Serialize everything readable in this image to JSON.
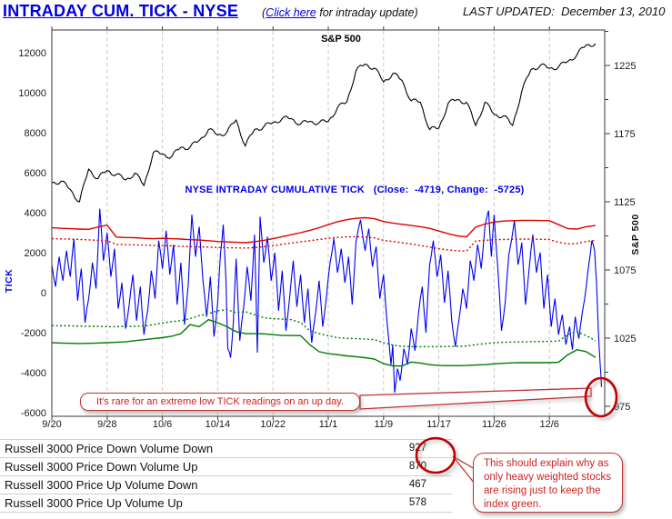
{
  "header": {
    "title": "INTRADAY CUM. TICK - NYSE",
    "subtitle_prefix": "(",
    "link_text": "Click here",
    "subtitle_suffix": " for intraday update)",
    "last_updated": "LAST UPDATED:  December 13, 2010"
  },
  "chart_data": {
    "type": "line",
    "title": "NYSE Intraday Cumulative TICK with S&P 500 overlay",
    "x_axis": {
      "unit": "trading days from 9/20/2010",
      "tick_labels": [
        "9/20",
        "9/28",
        "10/6",
        "10/14",
        "10/22",
        "11/1",
        "11/9",
        "11/17",
        "11/26",
        "12/6"
      ],
      "tick_days": [
        0,
        6,
        12,
        18,
        24,
        30,
        36,
        42,
        48,
        54
      ],
      "range": [
        0,
        60
      ],
      "grid": "vertical-dashed"
    },
    "left_axis": {
      "label": "TICK",
      "ticks": [
        12000,
        10000,
        8000,
        6000,
        4000,
        2000,
        0,
        -2000,
        -4000,
        -6000
      ],
      "range": [
        -6200,
        13150
      ]
    },
    "right_axis": {
      "label": "S&P 500",
      "ticks": [
        1225,
        1175,
        1125,
        1075,
        1025,
        975
      ],
      "minor_step": 25,
      "range": [
        967,
        1251
      ]
    },
    "annotations": {
      "sp_label": "S&P 500",
      "tick_series_label": "NYSE INTRADAY CUMULATIVE TICK   (Close:  -4719, Change:  -5725)",
      "close": -4719,
      "change": -5725
    },
    "series": [
      {
        "name": "S&P 500",
        "axis": "right",
        "style": "solid",
        "color": "#000000",
        "values": [
          1139,
          1140,
          1134,
          1125,
          1149,
          1142,
          1148,
          1145,
          1141,
          1146,
          1137,
          1161,
          1160,
          1158,
          1165,
          1165,
          1170,
          1178,
          1174,
          1176,
          1185,
          1166,
          1178,
          1180,
          1183,
          1186,
          1186,
          1182,
          1184,
          1183,
          1184,
          1194,
          1198,
          1221,
          1226,
          1223,
          1213,
          1219,
          1214,
          1199,
          1198,
          1178,
          1179,
          1197,
          1200,
          1198,
          1181,
          1198,
          1189,
          1188,
          1181,
          1206,
          1222,
          1225,
          1223,
          1224,
          1228,
          1233,
          1240,
          1241
        ]
      },
      {
        "name": "NYSE Intraday Cumulative TICK",
        "axis": "left",
        "style": "solid",
        "color": "#0000ee",
        "points": [
          [
            0,
            1400
          ],
          [
            0.4,
            300
          ],
          [
            0.8,
            1800
          ],
          [
            1.2,
            600
          ],
          [
            1.6,
            2100
          ],
          [
            2,
            800
          ],
          [
            2.4,
            2700
          ],
          [
            2.8,
            -400
          ],
          [
            3.2,
            1200
          ],
          [
            3.6,
            -1500
          ],
          [
            4,
            -300
          ],
          [
            4.4,
            1500
          ],
          [
            4.8,
            200
          ],
          [
            5.2,
            4200
          ],
          [
            5.6,
            1600
          ],
          [
            6,
            3000
          ],
          [
            6.4,
            800
          ],
          [
            6.8,
            2200
          ],
          [
            7.2,
            -800
          ],
          [
            7.6,
            500
          ],
          [
            8,
            -1800
          ],
          [
            8.4,
            -600
          ],
          [
            8.8,
            900
          ],
          [
            9.2,
            -1400
          ],
          [
            9.6,
            300
          ],
          [
            10,
            -2100
          ],
          [
            10.4,
            -900
          ],
          [
            10.8,
            1100
          ],
          [
            11.2,
            -300
          ],
          [
            11.6,
            2600
          ],
          [
            12,
            1200
          ],
          [
            12.4,
            3100
          ],
          [
            12.8,
            900
          ],
          [
            13.2,
            2400
          ],
          [
            13.6,
            -600
          ],
          [
            14,
            1500
          ],
          [
            14.4,
            -1600
          ],
          [
            14.8,
            400
          ],
          [
            15.2,
            3900
          ],
          [
            15.6,
            1800
          ],
          [
            16,
            3300
          ],
          [
            16.4,
            600
          ],
          [
            16.8,
            -1200
          ],
          [
            17.2,
            800
          ],
          [
            17.6,
            -2200
          ],
          [
            18,
            -500
          ],
          [
            18.3,
            1900
          ],
          [
            18.6,
            3400
          ],
          [
            18.9,
            600
          ],
          [
            19.1,
            -2800
          ],
          [
            19.4,
            -3250
          ],
          [
            19.7,
            -1500
          ],
          [
            20,
            1700
          ],
          [
            20.4,
            -2400
          ],
          [
            20.8,
            -800
          ],
          [
            21.2,
            1300
          ],
          [
            21.6,
            -400
          ],
          [
            22,
            2900
          ],
          [
            22.3,
            -3000
          ],
          [
            22.6,
            3800
          ],
          [
            23,
            1500
          ],
          [
            23.4,
            2800
          ],
          [
            23.8,
            600
          ],
          [
            24.2,
            2000
          ],
          [
            24.6,
            -900
          ],
          [
            25,
            1100
          ],
          [
            25.4,
            -1900
          ],
          [
            25.8,
            -300
          ],
          [
            26.2,
            1600
          ],
          [
            26.6,
            -700
          ],
          [
            27,
            900
          ],
          [
            27.4,
            -1500
          ],
          [
            27.8,
            200
          ],
          [
            28.2,
            -2500
          ],
          [
            28.6,
            -1100
          ],
          [
            29,
            600
          ],
          [
            29.4,
            -1700
          ],
          [
            29.8,
            -200
          ],
          [
            30.2,
            1500
          ],
          [
            30.6,
            2700
          ],
          [
            31,
            1000
          ],
          [
            31.4,
            2200
          ],
          [
            31.8,
            500
          ],
          [
            32.2,
            1800
          ],
          [
            32.6,
            -600
          ],
          [
            33,
            2500
          ],
          [
            33.5,
            3650
          ],
          [
            34,
            2100
          ],
          [
            34.4,
            3200
          ],
          [
            34.8,
            1300
          ],
          [
            35.2,
            2300
          ],
          [
            35.6,
            -300
          ],
          [
            36,
            900
          ],
          [
            36.4,
            -1600
          ],
          [
            36.8,
            -3600
          ],
          [
            37,
            -2600
          ],
          [
            37.2,
            -5000
          ],
          [
            37.5,
            -3800
          ],
          [
            37.8,
            -4400
          ],
          [
            38.2,
            -2800
          ],
          [
            38.6,
            -3600
          ],
          [
            39,
            -1800
          ],
          [
            39.4,
            -2900
          ],
          [
            39.8,
            -1000
          ],
          [
            40.2,
            300
          ],
          [
            40.6,
            -2000
          ],
          [
            41,
            1400
          ],
          [
            41.4,
            2600
          ],
          [
            41.8,
            800
          ],
          [
            42.2,
            1900
          ],
          [
            42.6,
            -500
          ],
          [
            43,
            1100
          ],
          [
            43.4,
            -1400
          ],
          [
            43.8,
            -2700
          ],
          [
            44.2,
            -1300
          ],
          [
            44.6,
            200
          ],
          [
            45,
            -800
          ],
          [
            45.4,
            1600
          ],
          [
            45.8,
            600
          ],
          [
            46.2,
            2400
          ],
          [
            46.6,
            1200
          ],
          [
            47,
            3300
          ],
          [
            47.4,
            4100
          ],
          [
            47.7,
            1800
          ],
          [
            48,
            3900
          ],
          [
            48.4,
            1200
          ],
          [
            48.8,
            -1900
          ],
          [
            49.2,
            -500
          ],
          [
            49.6,
            1900
          ],
          [
            50.2,
            3600
          ],
          [
            50.6,
            1400
          ],
          [
            51,
            2500
          ],
          [
            51.4,
            -600
          ],
          [
            51.8,
            1200
          ],
          [
            52.2,
            2900
          ],
          [
            52.6,
            1000
          ],
          [
            53,
            2000
          ],
          [
            53.4,
            -800
          ],
          [
            53.8,
            900
          ],
          [
            54.2,
            -1700
          ],
          [
            54.6,
            -300
          ],
          [
            55,
            -2100
          ],
          [
            55.4,
            -1100
          ],
          [
            55.8,
            -2600
          ],
          [
            56.2,
            -1700
          ],
          [
            56.5,
            -2850
          ],
          [
            56.8,
            -1200
          ],
          [
            57.2,
            -2300
          ],
          [
            57.6,
            -900
          ],
          [
            58,
            300
          ],
          [
            58.3,
            1500
          ],
          [
            58.6,
            2600
          ],
          [
            58.9,
            2100
          ],
          [
            59.1,
            600
          ],
          [
            59.3,
            -1800
          ],
          [
            59.5,
            -3500
          ],
          [
            59.65,
            -4719
          ]
        ]
      },
      {
        "name": "Upper band",
        "axis": "left",
        "style": "solid",
        "color": "#e00000",
        "values": [
          3250,
          3220,
          3200,
          3180,
          3170,
          3280,
          3380,
          2780,
          2760,
          2750,
          2720,
          2700,
          2720,
          2700,
          2680,
          2650,
          2630,
          2600,
          2560,
          2540,
          2520,
          2500,
          2550,
          2620,
          2700,
          2800,
          2900,
          3000,
          3120,
          3250,
          3400,
          3550,
          3650,
          3720,
          3750,
          3700,
          3560,
          3480,
          3420,
          3360,
          3300,
          3220,
          3080,
          2950,
          2840,
          2790,
          3280,
          3430,
          3530,
          3580,
          3600,
          3620,
          3620,
          3610,
          3600,
          3400,
          3200,
          3180,
          3300,
          3360
        ]
      },
      {
        "name": "Upper band (dotted)",
        "axis": "left",
        "style": "dotted",
        "color": "#e00000",
        "values": [
          2700,
          2690,
          2680,
          2660,
          2640,
          2620,
          2600,
          2420,
          2400,
          2390,
          2380,
          2360,
          2350,
          2340,
          2320,
          2300,
          2290,
          2280,
          2260,
          2250,
          2240,
          2230,
          2260,
          2300,
          2350,
          2420,
          2480,
          2540,
          2600,
          2660,
          2720,
          2760,
          2790,
          2800,
          2780,
          2740,
          2620,
          2560,
          2500,
          2430,
          2360,
          2280,
          2200,
          2140,
          2100,
          2080,
          2580,
          2620,
          2650,
          2660,
          2670,
          2680,
          2680,
          2670,
          2660,
          2520,
          2440,
          2460,
          2560,
          2620
        ]
      },
      {
        "name": "Lower band (dotted)",
        "axis": "left",
        "style": "dotted",
        "color": "#007a00",
        "values": [
          -1650,
          -1660,
          -1660,
          -1670,
          -1680,
          -1680,
          -1700,
          -1700,
          -1690,
          -1680,
          -1670,
          -1600,
          -1520,
          -1450,
          -1400,
          -1300,
          -1150,
          -1050,
          -900,
          -850,
          -1000,
          -950,
          -1100,
          -1250,
          -1300,
          -1320,
          -1350,
          -1500,
          -1900,
          -2050,
          -2150,
          -2250,
          -2280,
          -2300,
          -2320,
          -2350,
          -2500,
          -2620,
          -2680,
          -2700,
          -2700,
          -2700,
          -2700,
          -2690,
          -2680,
          -2670,
          -2600,
          -2550,
          -2500,
          -2480,
          -2470,
          -2460,
          -2450,
          -2440,
          -2430,
          -2420,
          -2100,
          -1950,
          -2150,
          -2400
        ]
      },
      {
        "name": "Lower band",
        "axis": "left",
        "style": "solid",
        "color": "#007a00",
        "values": [
          -2500,
          -2520,
          -2530,
          -2540,
          -2530,
          -2520,
          -2500,
          -2480,
          -2460,
          -2400,
          -2350,
          -2300,
          -2250,
          -2180,
          -2050,
          -1600,
          -1700,
          -1350,
          -1500,
          -1700,
          -1950,
          -2050,
          -2050,
          -2060,
          -2100,
          -2140,
          -2140,
          -2150,
          -2600,
          -2950,
          -3050,
          -3100,
          -3160,
          -3200,
          -3250,
          -3320,
          -3550,
          -3660,
          -3670,
          -3470,
          -3520,
          -3600,
          -3640,
          -3650,
          -3650,
          -3640,
          -3620,
          -3600,
          -3560,
          -3530,
          -3510,
          -3500,
          -3500,
          -3500,
          -3500,
          -3480,
          -3100,
          -2850,
          -2950,
          -3240
        ]
      }
    ],
    "legend_position": "none"
  },
  "callouts": {
    "chart_note": "It's rare for an extreme low TICK readings on an up day.",
    "table_note": "This should explain why as only heavy weighted stocks are rising just to keep the index green."
  },
  "table": {
    "rows": [
      {
        "label": "Russell 3000 Price Down Volume Down",
        "value": "927"
      },
      {
        "label": "Russell 3000 Price Down Volume Up",
        "value": "870"
      },
      {
        "label": "Russell 3000 Price Up Volume Down",
        "value": "467"
      },
      {
        "label": "Russell 3000 Price Up Volume Up",
        "value": "578"
      }
    ],
    "circled_values": [
      "927",
      "870"
    ]
  },
  "colors": {
    "title_blue": "#0000e0",
    "tick_line": "#0000ee",
    "sp_line": "#000000",
    "upper_band_red": "#e00000",
    "lower_band_green": "#007a00",
    "callout_red": "#c03333",
    "circle_red": "#c00000",
    "gridline": "#c9c9c9"
  }
}
